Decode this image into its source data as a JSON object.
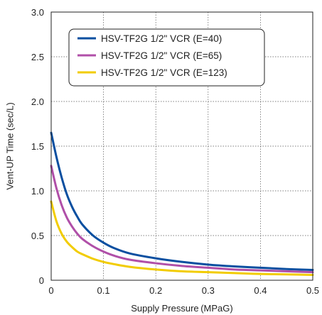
{
  "chart_data": {
    "type": "line",
    "title": "",
    "xlabel": "Supply Pressure (MPaG)",
    "ylabel": "Vent-UP Time (sec/L)",
    "xlim": [
      0,
      0.5
    ],
    "ylim": [
      0,
      3.0
    ],
    "x_ticks": [
      "0",
      "0.1",
      "0.2",
      "0.3",
      "0.4",
      "0.5"
    ],
    "y_ticks": [
      "0",
      "0.5",
      "1.0",
      "1.5",
      "2.0",
      "2.5",
      "3.0"
    ],
    "grid": true,
    "legend_position": "top-left",
    "series": [
      {
        "name": "HSV-TF2G  1/2\" VCR (E=40)",
        "color": "#0a4fa0",
        "x": [
          0,
          0.01,
          0.02,
          0.03,
          0.04,
          0.05,
          0.06,
          0.08,
          0.1,
          0.12,
          0.15,
          0.2,
          0.25,
          0.3,
          0.35,
          0.4,
          0.45,
          0.5
        ],
        "y": [
          1.65,
          1.38,
          1.15,
          0.96,
          0.82,
          0.71,
          0.62,
          0.5,
          0.42,
          0.36,
          0.3,
          0.245,
          0.205,
          0.175,
          0.155,
          0.14,
          0.125,
          0.115
        ]
      },
      {
        "name": "HSV-TF2G  1/2\" VCR (E=65)",
        "color": "#b04fa8",
        "x": [
          0,
          0.01,
          0.02,
          0.03,
          0.04,
          0.05,
          0.06,
          0.08,
          0.1,
          0.12,
          0.15,
          0.2,
          0.25,
          0.3,
          0.35,
          0.4,
          0.45,
          0.5
        ],
        "y": [
          1.28,
          1.03,
          0.84,
          0.7,
          0.6,
          0.52,
          0.46,
          0.38,
          0.32,
          0.275,
          0.23,
          0.19,
          0.16,
          0.14,
          0.12,
          0.11,
          0.1,
          0.09
        ]
      },
      {
        "name": "HSV-TF2G  1/2\" VCR (E=123)",
        "color": "#f2cc00",
        "x": [
          0,
          0.01,
          0.02,
          0.03,
          0.04,
          0.05,
          0.06,
          0.08,
          0.1,
          0.12,
          0.15,
          0.2,
          0.25,
          0.3,
          0.35,
          0.4,
          0.45,
          0.5
        ],
        "y": [
          0.88,
          0.66,
          0.52,
          0.43,
          0.37,
          0.32,
          0.29,
          0.24,
          0.205,
          0.18,
          0.15,
          0.12,
          0.1,
          0.09,
          0.08,
          0.07,
          0.065,
          0.06
        ]
      }
    ]
  }
}
